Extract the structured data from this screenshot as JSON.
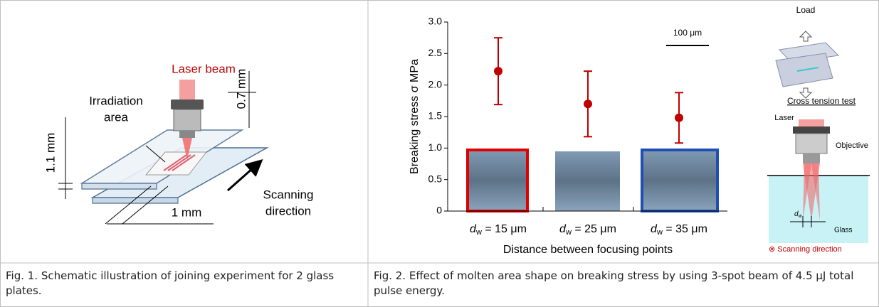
{
  "figure1": {
    "labels": {
      "laser_beam": "Laser beam",
      "irradiation": [
        "Irradiation",
        "area"
      ],
      "gap": "0.7 mm",
      "thickness": "1.1 mm",
      "width": "1 mm",
      "scanning": [
        "Scanning",
        "direction"
      ]
    },
    "caption": "Fig. 1. Schematic illustration of joining experiment for 2 glass plates."
  },
  "figure2": {
    "chart": {
      "type": "errorbar",
      "y_label": "Breaking stress σ MPa",
      "x_label": "Distance between focusing points",
      "categories": [
        {
          "var": "d",
          "sub": "w",
          "text": " = 15 μm"
        },
        {
          "var": "d",
          "sub": "w",
          "text": " = 25 μm"
        },
        {
          "var": "d",
          "sub": "w",
          "text": " = 35 μm"
        }
      ],
      "values": [
        2.22,
        1.7,
        1.48
      ],
      "errors": [
        0.53,
        0.52,
        0.4
      ],
      "color": "#c00000",
      "ylim": [
        0,
        3
      ],
      "yticks": [
        0,
        0.5,
        {
          "value": 1,
          "label": "1.0"
        },
        1.5,
        {
          "value": 2,
          "label": "2.0"
        },
        2.5,
        {
          "value": 3,
          "label": "3.0"
        }
      ],
      "scale_bar": "100 μm"
    },
    "side": {
      "load": "Load",
      "test": "Cross tension test",
      "laser": "Laser",
      "objective": "Objective",
      "dw_var": "d",
      "dw_sub": "w",
      "glass": "Glass",
      "scanning": "⊗ Scanning direction"
    },
    "caption": "Fig. 2. Effect of molten area shape on breaking stress by using 3-spot beam of 4.5 μJ total pulse energy."
  }
}
